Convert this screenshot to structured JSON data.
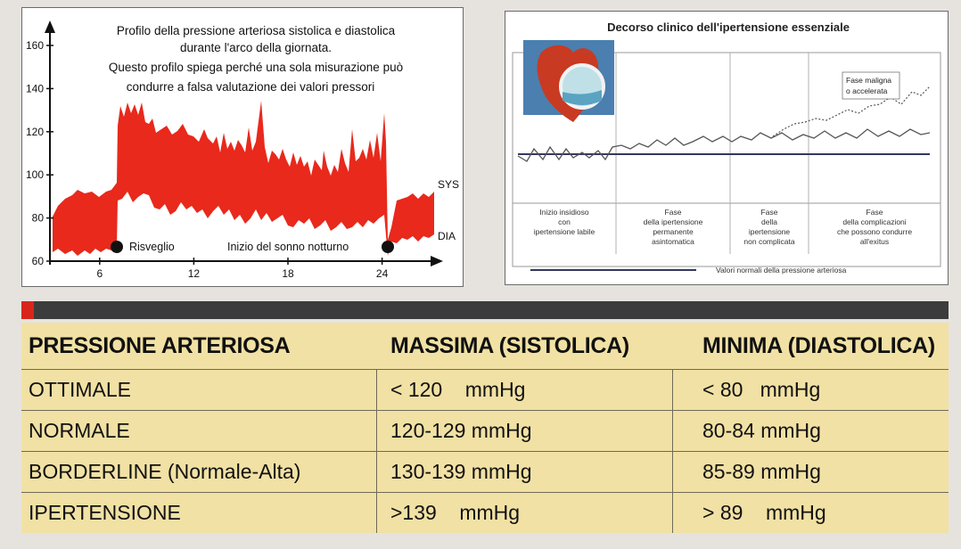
{
  "left_chart": {
    "title_lines": [
      "Profilo della pressione arteriosa sistolica e diastolica",
      "durante l'arco della giornata.",
      "Questo profilo spiega perché una sola misurazione può",
      "condurre a falsa valutazione dei valori pressori"
    ],
    "y_ticks": [
      "160",
      "140",
      "120",
      "100",
      "80",
      "60"
    ],
    "x_ticks": [
      "6",
      "12",
      "18",
      "24"
    ],
    "series_labels": {
      "sys": "SYS",
      "dia": "DIA"
    },
    "markers": {
      "wake": "Risveglio",
      "sleep": "Inizio del sonno notturno"
    },
    "fill_color": "#e8291c"
  },
  "right_chart": {
    "title": "Decorso clinico dell'ipertensione essenziale",
    "annotation_lines": [
      "Fase maligna",
      "o accelerata"
    ],
    "phases": [
      {
        "lines": [
          "Inizio insidioso",
          "con",
          "ipertensione labile"
        ]
      },
      {
        "lines": [
          "Fase",
          "della ipertensione",
          "permanente",
          "asintomatica"
        ]
      },
      {
        "lines": [
          "Fase",
          "della",
          "ipertensione",
          "non complicata"
        ]
      },
      {
        "lines": [
          "Fase",
          "della complicazioni",
          "che possono condurre",
          "all'exitus"
        ]
      }
    ],
    "legend": "Valori normali della pressione arteriosa",
    "normal_line_color": "#34385e"
  },
  "table": {
    "headers": [
      "PRESSIONE ARTERIOSA",
      "MASSIMA (SISTOLICA)",
      "MINIMA (DIASTOLICA)"
    ],
    "rows": [
      [
        "OTTIMALE",
        "< 120    mmHg",
        "< 80   mmHg"
      ],
      [
        "NORMALE",
        "120-129 mmHg",
        "80-84 mmHg"
      ],
      [
        "BORDERLINE (Normale-Alta)",
        "130-139 mmHg",
        "85-89 mmHg"
      ],
      [
        "IPERTENSIONE",
        ">139    mmHg",
        "> 89    mmHg"
      ]
    ],
    "background": "#f1e1a4"
  }
}
